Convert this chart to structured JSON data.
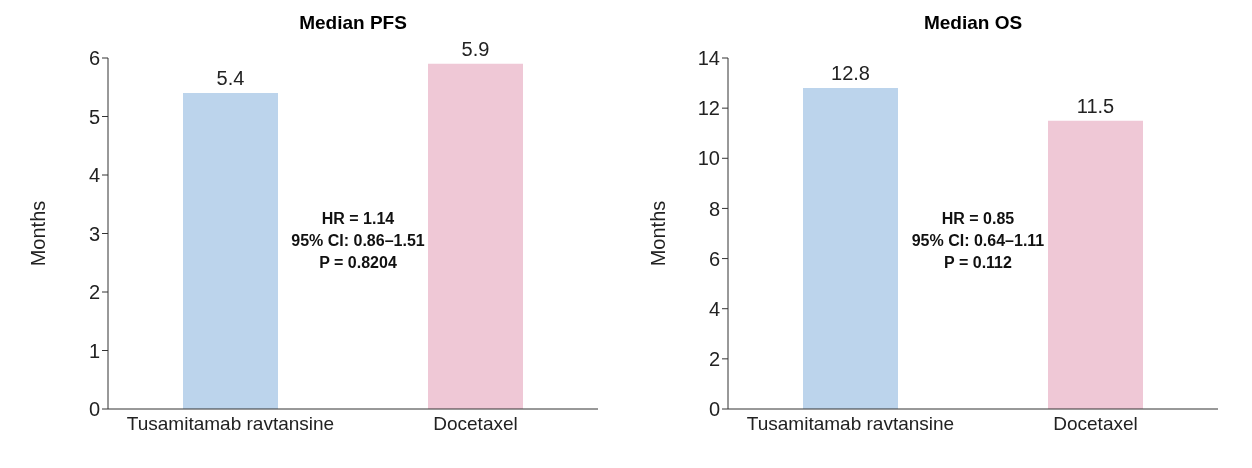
{
  "chart_data": [
    {
      "type": "bar",
      "title": "Median PFS",
      "ylabel": "Months",
      "categories": [
        "Tusamitamab ravtansine",
        "Docetaxel"
      ],
      "values": [
        5.4,
        5.9
      ],
      "colors": [
        "#bcd4ec",
        "#efc8d6"
      ],
      "ylim": [
        0,
        6
      ],
      "yticks": [
        0,
        1,
        2,
        3,
        4,
        5,
        6
      ],
      "grid": false,
      "data_labels": true,
      "annotations": [
        "HR = 1.14",
        "95% CI: 0.86–1.51",
        "P = 0.8204"
      ]
    },
    {
      "type": "bar",
      "title": "Median OS",
      "ylabel": "Months",
      "categories": [
        "Tusamitamab ravtansine",
        "Docetaxel"
      ],
      "values": [
        12.8,
        11.5
      ],
      "colors": [
        "#bcd4ec",
        "#efc8d6"
      ],
      "ylim": [
        0,
        14
      ],
      "yticks": [
        0,
        2,
        4,
        6,
        8,
        10,
        12,
        14
      ],
      "grid": false,
      "data_labels": true,
      "annotations": [
        "HR = 0.85",
        "95% CI: 0.64–1.11",
        "P = 0.112"
      ]
    }
  ]
}
